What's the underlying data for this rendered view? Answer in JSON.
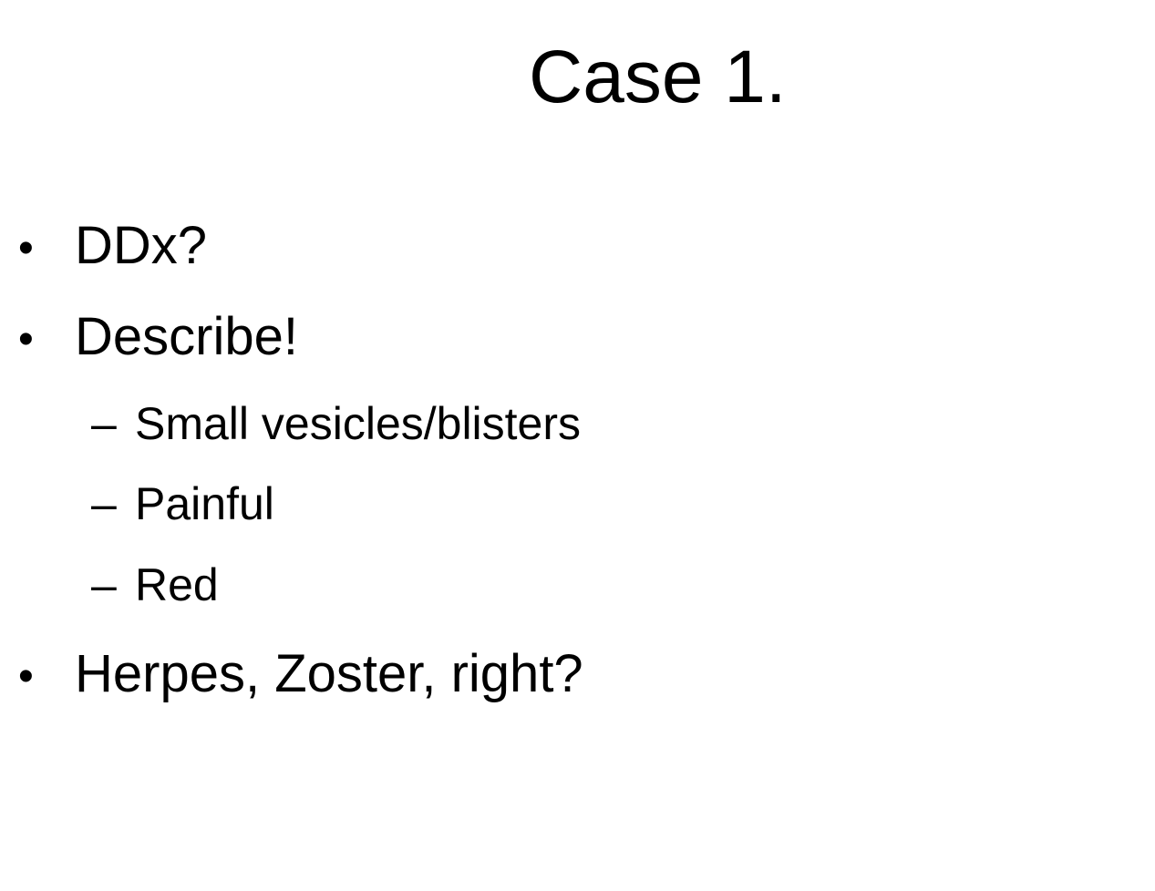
{
  "slide": {
    "title": "Case 1.",
    "bullets": [
      {
        "marker": "•",
        "text": "DDx?"
      },
      {
        "marker": "•",
        "text": "Describe!"
      },
      {
        "marker": "•",
        "text": "Herpes, Zoster, right?"
      }
    ],
    "sub_bullets": [
      {
        "marker": "–",
        "text": "Small vesicles/blisters"
      },
      {
        "marker": "–",
        "text": "Painful"
      },
      {
        "marker": "–",
        "text": "Red"
      }
    ]
  }
}
